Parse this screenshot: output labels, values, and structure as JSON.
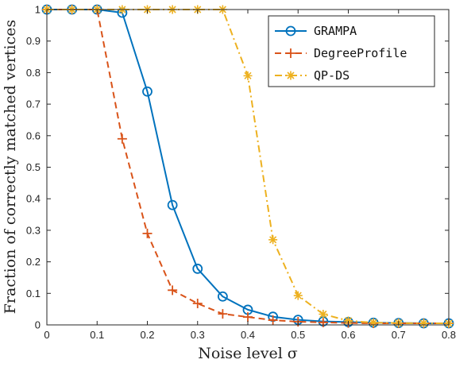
{
  "chart_data": {
    "type": "line",
    "xlabel": "Noise level σ",
    "ylabel": "Fraction of correctly matched vertices",
    "xlim": [
      0,
      0.8
    ],
    "ylim": [
      0,
      1
    ],
    "xticks": [
      "0",
      "0.1",
      "0.2",
      "0.3",
      "0.4",
      "0.5",
      "0.6",
      "0.7",
      "0.8"
    ],
    "yticks": [
      "0",
      "0.1",
      "0.2",
      "0.3",
      "0.4",
      "0.5",
      "0.6",
      "0.7",
      "0.8",
      "0.9",
      "1"
    ],
    "grid": false,
    "legend_position": "top-right",
    "x": [
      0,
      0.05,
      0.1,
      0.15,
      0.2,
      0.25,
      0.3,
      0.35,
      0.4,
      0.45,
      0.5,
      0.55,
      0.6,
      0.65,
      0.7,
      0.75,
      0.8
    ],
    "series": [
      {
        "name": "GRAMPA",
        "color": "#0072BD",
        "line_style": "solid",
        "marker": "circle",
        "values": [
          1,
          1,
          1,
          0.99,
          0.74,
          0.38,
          0.178,
          0.09,
          0.048,
          0.026,
          0.016,
          0.011,
          0.009,
          0.007,
          0.006,
          0.005,
          0.005
        ]
      },
      {
        "name": "DegreeProfile",
        "color": "#D95319",
        "line_style": "dashed",
        "marker": "plus",
        "values": [
          1,
          1,
          1,
          0.59,
          0.29,
          0.11,
          0.068,
          0.035,
          0.025,
          0.015,
          0.01,
          0.008,
          0.006,
          0.005,
          0.005,
          0.005,
          0.005
        ]
      },
      {
        "name": "QP-DS",
        "color": "#EDB120",
        "line_style": "dashdot",
        "marker": "asterisk",
        "values": [
          1,
          1,
          1,
          1,
          1,
          1,
          1,
          1,
          0.79,
          0.27,
          0.093,
          0.034,
          0.013,
          0.007,
          0.006,
          0.005,
          0.005
        ]
      }
    ]
  }
}
